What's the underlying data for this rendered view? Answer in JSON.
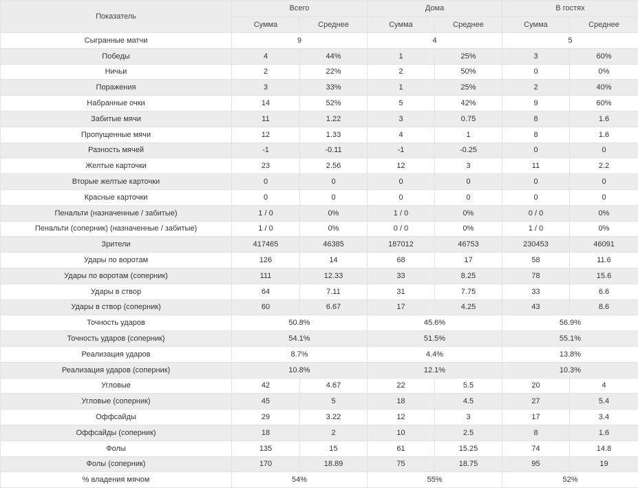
{
  "header": {
    "indicator": "Показатель",
    "groups": [
      "Всего",
      "Дома",
      "В гостях"
    ],
    "sub": [
      "Сумма",
      "Среднее"
    ]
  },
  "rows": [
    {
      "label": "Сыгранные матчи",
      "merged": true,
      "values": [
        "9",
        "4",
        "5"
      ]
    },
    {
      "label": "Победы",
      "values": [
        "4",
        "44%",
        "1",
        "25%",
        "3",
        "60%"
      ]
    },
    {
      "label": "Ничьи",
      "values": [
        "2",
        "22%",
        "2",
        "50%",
        "0",
        "0%"
      ]
    },
    {
      "label": "Поражения",
      "values": [
        "3",
        "33%",
        "1",
        "25%",
        "2",
        "40%"
      ]
    },
    {
      "label": "Набранные очки",
      "values": [
        "14",
        "52%",
        "5",
        "42%",
        "9",
        "60%"
      ]
    },
    {
      "label": "Забитые мячи",
      "values": [
        "11",
        "1.22",
        "3",
        "0.75",
        "8",
        "1.6"
      ]
    },
    {
      "label": "Пропущенные мячи",
      "values": [
        "12",
        "1.33",
        "4",
        "1",
        "8",
        "1.6"
      ]
    },
    {
      "label": "Разность мячей",
      "values": [
        "-1",
        "-0.11",
        "-1",
        "-0.25",
        "0",
        "0"
      ]
    },
    {
      "label": "Желтые карточки",
      "values": [
        "23",
        "2.56",
        "12",
        "3",
        "11",
        "2.2"
      ]
    },
    {
      "label": "Вторые желтые карточки",
      "values": [
        "0",
        "0",
        "0",
        "0",
        "0",
        "0"
      ]
    },
    {
      "label": "Красные карточки",
      "values": [
        "0",
        "0",
        "0",
        "0",
        "0",
        "0"
      ]
    },
    {
      "label": "Пенальти (назначенные / забитые)",
      "values": [
        "1 / 0",
        "0%",
        "1 / 0",
        "0%",
        "0 / 0",
        "0%"
      ]
    },
    {
      "label": "Пенальти (соперник) (назначенные / забитые)",
      "values": [
        "1 / 0",
        "0%",
        "0 / 0",
        "0%",
        "1 / 0",
        "0%"
      ]
    },
    {
      "label": "Зрители",
      "values": [
        "417465",
        "46385",
        "187012",
        "46753",
        "230453",
        "46091"
      ]
    },
    {
      "label": "Удары по воротам",
      "values": [
        "126",
        "14",
        "68",
        "17",
        "58",
        "11.6"
      ]
    },
    {
      "label": "Удары по воротам (соперник)",
      "values": [
        "111",
        "12.33",
        "33",
        "8.25",
        "78",
        "15.6"
      ]
    },
    {
      "label": "Удары в створ",
      "values": [
        "64",
        "7.11",
        "31",
        "7.75",
        "33",
        "6.6"
      ]
    },
    {
      "label": "Удары в створ (соперник)",
      "values": [
        "60",
        "6.67",
        "17",
        "4.25",
        "43",
        "8.6"
      ]
    },
    {
      "label": "Точность ударов",
      "merged": true,
      "values": [
        "50.8%",
        "45.6%",
        "56.9%"
      ]
    },
    {
      "label": "Точность ударов (соперник)",
      "merged": true,
      "values": [
        "54.1%",
        "51.5%",
        "55.1%"
      ]
    },
    {
      "label": "Реализация ударов",
      "merged": true,
      "values": [
        "8.7%",
        "4.4%",
        "13.8%"
      ]
    },
    {
      "label": "Реализация ударов (соперник)",
      "merged": true,
      "values": [
        "10.8%",
        "12.1%",
        "10.3%"
      ]
    },
    {
      "label": "Угловые",
      "values": [
        "42",
        "4.67",
        "22",
        "5.5",
        "20",
        "4"
      ]
    },
    {
      "label": "Угловые (соперник)",
      "values": [
        "45",
        "5",
        "18",
        "4.5",
        "27",
        "5.4"
      ]
    },
    {
      "label": "Оффсайды",
      "values": [
        "29",
        "3.22",
        "12",
        "3",
        "17",
        "3.4"
      ]
    },
    {
      "label": "Оффсайды (соперник)",
      "values": [
        "18",
        "2",
        "10",
        "2.5",
        "8",
        "1.6"
      ]
    },
    {
      "label": "Фолы",
      "values": [
        "135",
        "15",
        "61",
        "15.25",
        "74",
        "14.8"
      ]
    },
    {
      "label": "Фолы (соперник)",
      "values": [
        "170",
        "18.89",
        "75",
        "18.75",
        "95",
        "19"
      ]
    },
    {
      "label": "% владения мячом",
      "merged": true,
      "values": [
        "54%",
        "55%",
        "52%"
      ]
    }
  ]
}
